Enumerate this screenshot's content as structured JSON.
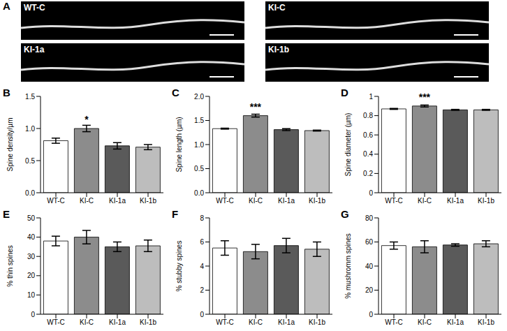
{
  "images": {
    "panel": "A",
    "labels": [
      "WT-C",
      "KI-C",
      "KI-1a",
      "KI-1b"
    ]
  },
  "chart_data": [
    {
      "type": "bar",
      "panel": "B",
      "y_label": "Spine density/µm",
      "categories": [
        "WT-C",
        "KI-C",
        "KI-1a",
        "KI-1b"
      ],
      "values": [
        0.81,
        1.0,
        0.73,
        0.71
      ],
      "errors": [
        0.04,
        0.05,
        0.05,
        0.04
      ],
      "annotations": [
        null,
        "*",
        null,
        null
      ],
      "colors": [
        "#ffffff",
        "#8c8c8c",
        "#5a5a5a",
        "#bdbdbd"
      ],
      "ylim": [
        0,
        1.5
      ],
      "yticks": [
        {
          "value": 0,
          "label": "0.0"
        },
        0.5,
        {
          "value": 1,
          "label": "1.0"
        },
        1.5
      ]
    },
    {
      "type": "bar",
      "panel": "C",
      "y_label": "Spine length (µm)",
      "categories": [
        "WT-C",
        "KI-C",
        "KI-1a",
        "KI-1b"
      ],
      "values": [
        1.33,
        1.6,
        1.31,
        1.29
      ],
      "errors": [
        0.01,
        0.03,
        0.02,
        0.01
      ],
      "annotations": [
        null,
        "***",
        null,
        null
      ],
      "colors": [
        "#ffffff",
        "#8c8c8c",
        "#5a5a5a",
        "#bdbdbd"
      ],
      "ylim": [
        0,
        2
      ],
      "yticks": [
        {
          "value": 0,
          "label": "0.0"
        },
        0.5,
        {
          "value": 1,
          "label": "1.0"
        },
        1.5,
        {
          "value": 2,
          "label": "2.0"
        }
      ]
    },
    {
      "type": "bar",
      "panel": "D",
      "y_label": "Spine diameter (µm)",
      "categories": [
        "WT-C",
        "KI-C",
        "KI-1a",
        "KI-1b"
      ],
      "values": [
        0.87,
        0.9,
        0.86,
        0.86
      ],
      "errors": [
        0.005,
        0.01,
        0.005,
        0.005
      ],
      "annotations": [
        null,
        "***",
        null,
        null
      ],
      "colors": [
        "#ffffff",
        "#8c8c8c",
        "#5a5a5a",
        "#bdbdbd"
      ],
      "ylim": [
        0,
        1
      ],
      "yticks": [
        0,
        0.2,
        0.4,
        0.6,
        0.8,
        1
      ]
    },
    {
      "type": "bar",
      "panel": "E",
      "y_label": "% thin spines",
      "categories": [
        "WT-C",
        "KI-C",
        "KI-1a",
        "KI-1b"
      ],
      "values": [
        38,
        40,
        35,
        35.5
      ],
      "errors": [
        2.5,
        3.5,
        2.5,
        3
      ],
      "colors": [
        "#ffffff",
        "#8c8c8c",
        "#5a5a5a",
        "#bdbdbd"
      ],
      "ylim": [
        0,
        50
      ],
      "yticks": [
        0,
        10,
        20,
        30,
        40,
        50
      ]
    },
    {
      "type": "bar",
      "panel": "F",
      "y_label": "% stubby spines",
      "categories": [
        "WT-C",
        "KI-C",
        "KI-1a",
        "KI-1b"
      ],
      "values": [
        5.5,
        5.2,
        5.7,
        5.4
      ],
      "errors": [
        0.6,
        0.6,
        0.6,
        0.6
      ],
      "colors": [
        "#ffffff",
        "#8c8c8c",
        "#5a5a5a",
        "#bdbdbd"
      ],
      "ylim": [
        0,
        8
      ],
      "yticks": [
        0,
        2,
        4,
        6,
        8
      ]
    },
    {
      "type": "bar",
      "panel": "G",
      "y_label": "% mushromm spines",
      "categories": [
        "WT-C",
        "KI-C",
        "KI-1a",
        "KI-1b"
      ],
      "values": [
        57,
        56,
        57.5,
        58.5
      ],
      "errors": [
        3,
        5,
        1,
        2.5
      ],
      "colors": [
        "#ffffff",
        "#8c8c8c",
        "#5a5a5a",
        "#bdbdbd"
      ],
      "ylim": [
        0,
        80
      ],
      "yticks": [
        0,
        20,
        40,
        60,
        80
      ]
    }
  ]
}
